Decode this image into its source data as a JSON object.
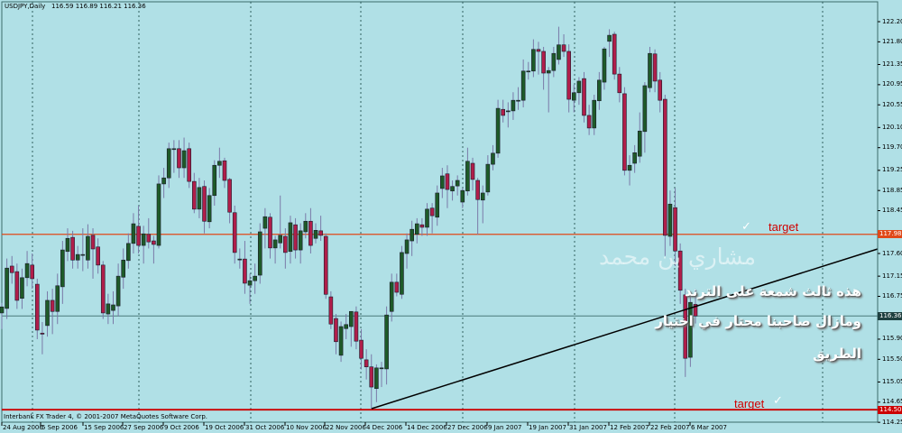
{
  "header": {
    "symbol_tf": "USDJPY,Daily",
    "ohlc": "116.59 116.89 116.21 116.36"
  },
  "footer": "Interbank FX Trader 4, © 2001-2007 MetaQuotes Software Corp.",
  "colors": {
    "background": "#b0e0e6",
    "bull": "#1e5a28",
    "bear": "#b01e4a",
    "wick": "#7a7aa8",
    "target_upper": "#e04818",
    "target_lower": "#cc0000",
    "current": "#4a7a7a"
  },
  "price_axis": [
    "122.20",
    "121.80",
    "121.35",
    "120.95",
    "120.55",
    "120.10",
    "119.70",
    "119.25",
    "118.85",
    "118.45",
    "117.60",
    "117.15",
    "116.75",
    "115.90",
    "115.50",
    "115.05",
    "114.65",
    "114.25"
  ],
  "price_tags": {
    "upper_target": "117.98",
    "current": "116.36",
    "lower_target": "114.50"
  },
  "date_axis": [
    "24 Aug 2006",
    "5 Sep 2006",
    "15 Sep 2006",
    "27 Sep 2006",
    "9 Oct 2006",
    "19 Oct 2006",
    "31 Oct 2006",
    "10 Nov 2006",
    "22 Nov 2006",
    "4 Dec 2006",
    "14 Dec 2006",
    "27 Dec 2006",
    "9 Jan 2007",
    "19 Jan 2007",
    "31 Jan 2007",
    "12 Feb 2007",
    "22 Feb 2007",
    "6 Mar 2007"
  ],
  "annotations": {
    "target_upper": "target",
    "target_lower": "target",
    "check": "✓",
    "watermark": "مشاري بن محمد",
    "line1": "هذه ثالث شمعة على الترند",
    "line2": "ومازال صاحبنا محتار في اختيار",
    "line3": "الطريق"
  },
  "chart_data": {
    "type": "candlestick",
    "title": "USDJPY,Daily",
    "ylim": [
      114.25,
      122.2
    ],
    "grid": "vertical dashed",
    "ohlc": [
      [
        116.42,
        116.62,
        116.1,
        116.54
      ],
      [
        116.51,
        117.5,
        116.3,
        117.31
      ],
      [
        117.35,
        117.55,
        117.0,
        117.22
      ],
      [
        117.24,
        117.4,
        116.5,
        116.67
      ],
      [
        116.71,
        117.3,
        116.5,
        117.12
      ],
      [
        117.12,
        117.65,
        116.95,
        117.4
      ],
      [
        117.37,
        117.6,
        116.9,
        117.1
      ],
      [
        116.99,
        117.1,
        115.9,
        116.08
      ],
      [
        116.02,
        116.24,
        115.6,
        116.0
      ],
      [
        116.17,
        116.85,
        115.95,
        116.67
      ],
      [
        116.67,
        116.9,
        116.0,
        116.45
      ],
      [
        116.45,
        117.2,
        116.2,
        116.96
      ],
      [
        116.94,
        117.85,
        116.6,
        117.67
      ],
      [
        117.64,
        118.1,
        117.45,
        117.9
      ],
      [
        117.92,
        118.05,
        117.3,
        117.47
      ],
      [
        117.47,
        117.75,
        117.3,
        117.58
      ],
      [
        117.58,
        118.1,
        117.25,
        117.58
      ],
      [
        117.47,
        118.18,
        117.3,
        117.94
      ],
      [
        117.96,
        118.1,
        117.1,
        117.69
      ],
      [
        117.73,
        117.9,
        117.2,
        117.37
      ],
      [
        117.37,
        117.45,
        116.3,
        116.42
      ],
      [
        116.4,
        116.8,
        116.2,
        116.6
      ],
      [
        116.47,
        116.85,
        116.2,
        116.58
      ],
      [
        116.56,
        117.4,
        116.35,
        117.15
      ],
      [
        117.13,
        117.7,
        116.9,
        117.47
      ],
      [
        117.46,
        118.0,
        117.3,
        117.8
      ],
      [
        117.8,
        118.4,
        117.6,
        118.19
      ],
      [
        118.14,
        118.55,
        117.6,
        117.76
      ],
      [
        117.76,
        118.15,
        117.4,
        117.99
      ],
      [
        117.98,
        118.3,
        117.7,
        117.83
      ],
      [
        117.85,
        117.95,
        117.4,
        117.78
      ],
      [
        117.76,
        119.15,
        117.7,
        118.98
      ],
      [
        118.98,
        119.3,
        118.7,
        119.1
      ],
      [
        119.1,
        119.8,
        118.9,
        119.68
      ],
      [
        119.68,
        119.85,
        119.2,
        119.68
      ],
      [
        119.68,
        119.85,
        119.1,
        119.3
      ],
      [
        119.3,
        119.9,
        119.1,
        119.64
      ],
      [
        119.68,
        119.8,
        118.9,
        119.03
      ],
      [
        119.03,
        119.2,
        118.4,
        118.48
      ],
      [
        118.48,
        119.1,
        118.3,
        118.91
      ],
      [
        118.93,
        119.05,
        118.0,
        118.24
      ],
      [
        118.23,
        118.9,
        118.1,
        118.75
      ],
      [
        118.75,
        119.45,
        118.55,
        119.35
      ],
      [
        119.35,
        119.7,
        119.1,
        119.43
      ],
      [
        119.44,
        119.5,
        118.9,
        119.05
      ],
      [
        119.07,
        119.1,
        118.2,
        118.42
      ],
      [
        118.41,
        118.55,
        117.4,
        117.62
      ],
      [
        117.49,
        117.7,
        117.3,
        117.49
      ],
      [
        117.49,
        117.85,
        116.8,
        117.01
      ],
      [
        116.97,
        117.2,
        116.6,
        117.06
      ],
      [
        117.06,
        117.4,
        116.8,
        117.15
      ],
      [
        117.17,
        118.2,
        117.0,
        118.03
      ],
      [
        118.1,
        118.5,
        117.7,
        118.33
      ],
      [
        118.32,
        118.4,
        117.5,
        117.71
      ],
      [
        117.71,
        117.95,
        117.4,
        117.87
      ],
      [
        117.81,
        118.75,
        117.7,
        117.96
      ],
      [
        117.94,
        118.1,
        117.3,
        117.62
      ],
      [
        117.64,
        118.35,
        117.4,
        118.21
      ],
      [
        118.17,
        118.3,
        117.5,
        117.67
      ],
      [
        117.67,
        118.2,
        117.4,
        118.05
      ],
      [
        118.03,
        118.4,
        117.9,
        118.24
      ],
      [
        118.24,
        118.5,
        117.6,
        117.76
      ],
      [
        117.9,
        118.2,
        117.8,
        118.06
      ],
      [
        118.05,
        118.35,
        117.85,
        117.96
      ],
      [
        117.94,
        118.0,
        116.7,
        116.79
      ],
      [
        116.74,
        116.85,
        116.1,
        116.2
      ],
      [
        116.31,
        116.4,
        115.6,
        115.85
      ],
      [
        115.58,
        116.25,
        115.45,
        116.15
      ],
      [
        116.11,
        116.4,
        115.9,
        116.19
      ],
      [
        116.15,
        116.45,
        115.75,
        116.45
      ],
      [
        116.44,
        116.55,
        115.7,
        115.86
      ],
      [
        115.88,
        116.1,
        115.3,
        115.52
      ],
      [
        115.49,
        115.7,
        115.1,
        115.35
      ],
      [
        115.35,
        115.6,
        114.52,
        114.95
      ],
      [
        114.92,
        115.4,
        114.65,
        115.33
      ],
      [
        115.33,
        115.45,
        114.95,
        115.33
      ],
      [
        115.31,
        116.55,
        115.0,
        116.38
      ],
      [
        116.45,
        117.2,
        116.25,
        117.03
      ],
      [
        117.03,
        117.2,
        116.75,
        116.83
      ],
      [
        116.79,
        117.75,
        116.7,
        117.62
      ],
      [
        117.6,
        118.0,
        117.3,
        117.87
      ],
      [
        117.85,
        118.25,
        117.55,
        118.08
      ],
      [
        117.98,
        118.3,
        117.8,
        118.19
      ],
      [
        118.17,
        118.3,
        117.95,
        118.12
      ],
      [
        118.12,
        118.6,
        117.95,
        118.48
      ],
      [
        118.5,
        118.6,
        118.0,
        118.35
      ],
      [
        118.32,
        118.95,
        118.15,
        118.8
      ],
      [
        118.89,
        119.3,
        118.7,
        119.14
      ],
      [
        119.18,
        119.35,
        118.5,
        118.87
      ],
      [
        118.84,
        119.05,
        118.65,
        118.93
      ],
      [
        118.94,
        119.15,
        118.75,
        119.05
      ],
      [
        118.62,
        118.9,
        118.5,
        118.85
      ],
      [
        118.84,
        119.7,
        118.75,
        119.43
      ],
      [
        119.39,
        119.5,
        118.85,
        119.07
      ],
      [
        119.05,
        119.1,
        117.98,
        118.67
      ],
      [
        118.66,
        118.95,
        118.2,
        118.8
      ],
      [
        118.82,
        119.55,
        118.75,
        119.37
      ],
      [
        119.37,
        119.75,
        119.25,
        119.59
      ],
      [
        119.59,
        120.65,
        119.5,
        120.48
      ],
      [
        120.46,
        120.65,
        120.2,
        120.34
      ],
      [
        120.43,
        120.6,
        120.1,
        120.43
      ],
      [
        120.43,
        120.8,
        120.25,
        120.64
      ],
      [
        120.64,
        120.9,
        120.45,
        120.64
      ],
      [
        120.64,
        121.45,
        120.5,
        121.22
      ],
      [
        121.22,
        121.4,
        121.05,
        121.22
      ],
      [
        121.22,
        121.85,
        121.1,
        121.65
      ],
      [
        121.65,
        121.8,
        121.15,
        121.61
      ],
      [
        121.61,
        121.7,
        120.85,
        121.18
      ],
      [
        121.18,
        121.3,
        120.4,
        121.23
      ],
      [
        121.23,
        121.7,
        121.1,
        121.57
      ],
      [
        121.45,
        122.1,
        121.35,
        121.74
      ],
      [
        121.74,
        121.95,
        121.5,
        121.61
      ],
      [
        121.61,
        121.75,
        120.4,
        120.66
      ],
      [
        120.64,
        120.95,
        120.4,
        120.79
      ],
      [
        120.79,
        121.1,
        120.55,
        121.02
      ],
      [
        121.07,
        121.2,
        120.2,
        120.34
      ],
      [
        120.34,
        120.55,
        119.95,
        120.09
      ],
      [
        120.09,
        120.75,
        119.95,
        120.64
      ],
      [
        120.63,
        121.2,
        120.45,
        121.04
      ],
      [
        121.0,
        121.7,
        120.85,
        121.66
      ],
      [
        121.81,
        122.05,
        121.5,
        121.93
      ],
      [
        121.95,
        122.0,
        121.05,
        121.16
      ],
      [
        121.16,
        121.3,
        120.6,
        120.79
      ],
      [
        120.77,
        120.9,
        119.15,
        119.25
      ],
      [
        119.25,
        119.55,
        118.95,
        119.35
      ],
      [
        119.39,
        119.75,
        119.2,
        119.6
      ],
      [
        119.53,
        120.4,
        119.4,
        120.03
      ],
      [
        120.02,
        121.0,
        119.6,
        120.93
      ],
      [
        120.89,
        121.7,
        120.8,
        121.57
      ],
      [
        121.56,
        121.65,
        120.8,
        121.02
      ],
      [
        121.04,
        121.2,
        120.4,
        120.64
      ],
      [
        120.66,
        120.75,
        117.55,
        117.96
      ],
      [
        117.94,
        118.85,
        117.75,
        118.58
      ],
      [
        118.51,
        118.9,
        117.35,
        117.65
      ],
      [
        117.65,
        117.8,
        116.6,
        116.87
      ],
      [
        116.78,
        116.9,
        115.15,
        115.52
      ],
      [
        115.54,
        116.75,
        115.35,
        116.63
      ],
      [
        116.59,
        116.89,
        116.21,
        116.36
      ]
    ]
  }
}
